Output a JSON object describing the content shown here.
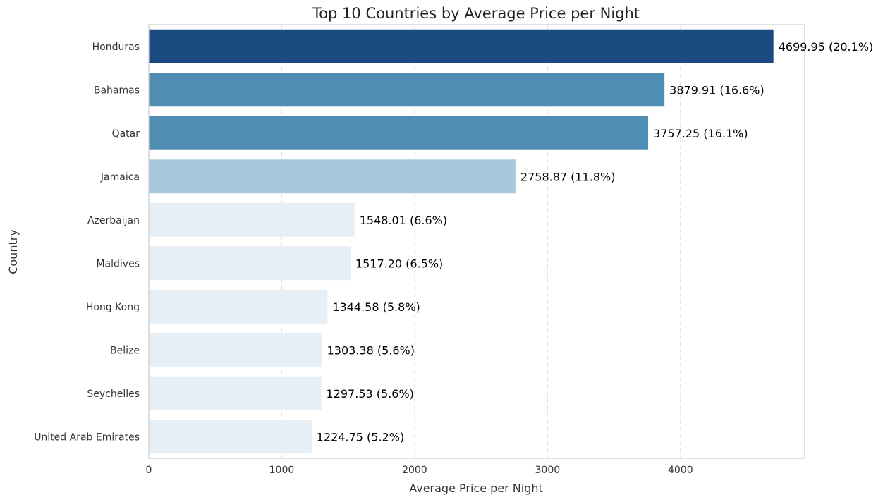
{
  "chart_data": {
    "type": "bar",
    "orientation": "horizontal",
    "title": "Top 10 Countries by Average Price per Night",
    "xlabel": "Average Price per Night",
    "ylabel": "Country",
    "xlim": [
      0,
      4935
    ],
    "xticks": [
      0,
      1000,
      2000,
      3000,
      4000
    ],
    "grid": "x, dashed",
    "categories": [
      "Honduras",
      "Bahamas",
      "Qatar",
      "Jamaica",
      "Azerbaijan",
      "Maldives",
      "Hong Kong",
      "Belize",
      "Seychelles",
      "United Arab Emirates"
    ],
    "values": [
      4699.95,
      3879.91,
      3757.25,
      2758.87,
      1548.01,
      1517.2,
      1344.58,
      1303.38,
      1297.53,
      1224.75
    ],
    "labels": [
      "4699.95 (20.1%)",
      "3879.91 (16.6%)",
      "3757.25 (16.1%)",
      "2758.87 (11.8%)",
      "1548.01 (6.6%)",
      "1517.20 (6.5%)",
      "1344.58 (5.8%)",
      "1303.38 (5.6%)",
      "1297.53 (5.6%)",
      "1224.75 (5.2%)"
    ],
    "colors": [
      "#1b4a80",
      "#508db5",
      "#508db5",
      "#a8c9dc",
      "#e6eef6",
      "#e6eef6",
      "#e6eef6",
      "#e6eef6",
      "#e6eef6",
      "#e6eef6"
    ]
  }
}
